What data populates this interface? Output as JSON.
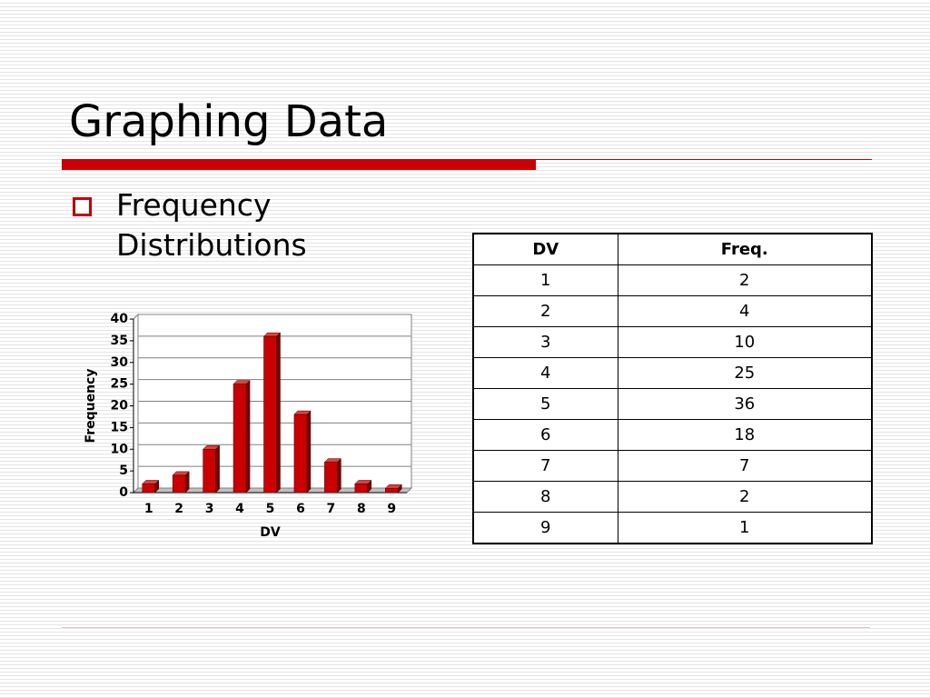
{
  "title": "Graphing Data",
  "bullets": [
    "Frequency Distributions"
  ],
  "chart_data": {
    "type": "bar",
    "categories": [
      "1",
      "2",
      "3",
      "4",
      "5",
      "6",
      "7",
      "8",
      "9"
    ],
    "values": [
      2,
      4,
      10,
      25,
      36,
      18,
      7,
      2,
      1
    ],
    "color": "#cc0000",
    "xlabel": "DV",
    "ylabel": "Frequency",
    "ylim": [
      0,
      40
    ],
    "yticks": [
      0,
      5,
      10,
      15,
      20,
      25,
      30,
      35,
      40
    ],
    "grid": true
  },
  "table": {
    "header": [
      "DV",
      "Freq."
    ],
    "rows": [
      [
        1,
        2
      ],
      [
        2,
        4
      ],
      [
        3,
        10
      ],
      [
        4,
        25
      ],
      [
        5,
        36
      ],
      [
        6,
        18
      ],
      [
        7,
        7
      ],
      [
        8,
        2
      ],
      [
        9,
        1
      ]
    ]
  }
}
